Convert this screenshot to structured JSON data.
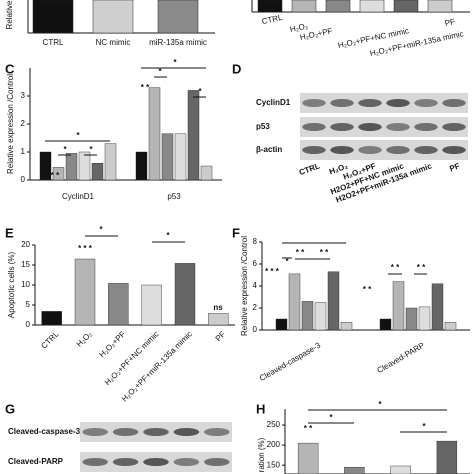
{
  "chart_data": [
    {
      "type": "bar-strip",
      "y_label": "Relative",
      "categories": [
        "CTRL",
        "NC mimic",
        "miR-135a mimic"
      ],
      "colors": [
        "#111111",
        "#cfcfcf",
        "#8a8a8a"
      ]
    },
    {
      "type": "bar-strip",
      "categories": [
        "CTRL",
        "H₂O₂",
        "H₂O₂+PF",
        "H₂O₂+PF+NC mimic",
        "H₂O₂+PF+miR-135a mimic",
        "PF"
      ],
      "colors": [
        "#111111",
        "#b5b5b5",
        "#888888",
        "#dddddd",
        "#666666",
        "#cccccc"
      ]
    },
    {
      "type": "bar",
      "panel": "C",
      "y_label": "Relative expression /Control",
      "categories": [
        "CyclinD1",
        "p53"
      ],
      "series": [
        {
          "color": "#111111",
          "values": [
            1.0,
            1.0
          ]
        },
        {
          "color": "#b5b5b5",
          "values": [
            0.45,
            3.3
          ]
        },
        {
          "color": "#888888",
          "values": [
            0.95,
            1.65
          ]
        },
        {
          "color": "#dddddd",
          "values": [
            1.0,
            1.65
          ]
        },
        {
          "color": "#666666",
          "values": [
            0.6,
            3.2
          ]
        },
        {
          "color": "#cccccc",
          "values": [
            1.3,
            0.5
          ]
        }
      ],
      "ylim": [
        0,
        4
      ],
      "yticks": [
        0,
        1,
        2,
        3
      ],
      "annotations": [
        "*",
        "*",
        "*",
        "* *",
        "* *",
        "*",
        "*",
        "*"
      ]
    },
    {
      "type": "blot",
      "panel": "D",
      "rows": [
        "CyclinD1",
        "p53",
        "β-actin"
      ],
      "categories": [
        "CTRL",
        "H₂O₂",
        "H₂O₂+PF",
        "H2O2+PF+NC mimic",
        "H2O2+PF+miR-135a mimic",
        "PF"
      ]
    },
    {
      "type": "bar",
      "panel": "E",
      "y_label": "Apoptotic cells (%)",
      "categories": [
        "CTRL",
        "H₂O₂",
        "H₂O₂+PF",
        "H₂O₂+PF+NC mimic",
        "H₂O₂+PF+miR-135a mimic",
        "PF"
      ],
      "values": [
        3.4,
        16.5,
        10.4,
        10.0,
        15.4,
        2.9
      ],
      "colors": [
        "#111111",
        "#b5b5b5",
        "#888888",
        "#dddddd",
        "#666666",
        "#cccccc"
      ],
      "ylim": [
        0,
        20
      ],
      "yticks": [
        0,
        5,
        10,
        15,
        20
      ],
      "annotations": [
        "* * *",
        "*",
        "*",
        "ns"
      ]
    },
    {
      "type": "bar",
      "panel": "F",
      "y_label": "Relative expression /Control",
      "categories": [
        "Cleaved-caspase-3",
        "Cleaved-PARP"
      ],
      "series": [
        {
          "color": "#111111",
          "values": [
            1.0,
            1.0
          ]
        },
        {
          "color": "#b5b5b5",
          "values": [
            5.1,
            4.4
          ]
        },
        {
          "color": "#888888",
          "values": [
            2.6,
            2.0
          ]
        },
        {
          "color": "#dddddd",
          "values": [
            2.5,
            2.1
          ]
        },
        {
          "color": "#666666",
          "values": [
            5.3,
            4.2
          ]
        },
        {
          "color": "#cccccc",
          "values": [
            0.7,
            0.7
          ]
        }
      ],
      "ylim": [
        0,
        8
      ],
      "yticks": [
        0,
        2,
        4,
        6,
        8
      ],
      "annotations": [
        "*",
        "* *",
        "* *",
        "* * *",
        "* *",
        "* *",
        "* *"
      ]
    },
    {
      "type": "blot",
      "panel": "G",
      "rows": [
        "Cleaved-caspase-3",
        "Cleaved-PARP"
      ]
    },
    {
      "type": "bar",
      "panel": "H",
      "y_label": "ration (%)",
      "values": [
        205,
        145,
        148,
        210
      ],
      "colors": [
        "#b5b5b5",
        "#888888",
        "#dddddd",
        "#666666"
      ],
      "ylim": [
        128,
        290
      ],
      "yticks": [
        150,
        200,
        250
      ],
      "annotations": [
        "* *",
        "*",
        "*",
        "*"
      ]
    }
  ]
}
